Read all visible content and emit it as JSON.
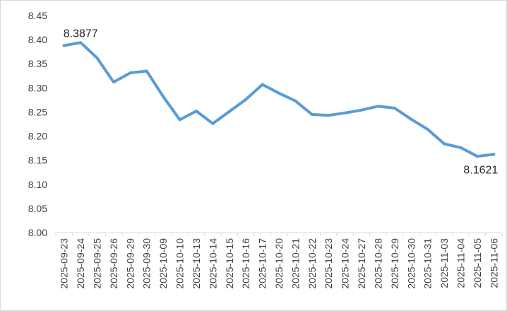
{
  "chart_data": {
    "type": "line",
    "title": "",
    "xlabel": "",
    "ylabel": "",
    "ylim": [
      8.0,
      8.45
    ],
    "y_ticks": [
      "8.00",
      "8.05",
      "8.10",
      "8.15",
      "8.20",
      "8.25",
      "8.30",
      "8.35",
      "8.40",
      "8.45"
    ],
    "grid": false,
    "legend": "none",
    "line_color": "#5B9BD5",
    "categories": [
      "2025-09-23",
      "2025-09-24",
      "2025-09-25",
      "2025-09-26",
      "2025-09-29",
      "2025-09-30",
      "2025-10-09",
      "2025-10-10",
      "2025-10-13",
      "2025-10-14",
      "2025-10-15",
      "2025-10-16",
      "2025-10-17",
      "2025-10-20",
      "2025-10-21",
      "2025-10-22",
      "2025-10-23",
      "2025-10-24",
      "2025-10-27",
      "2025-10-28",
      "2025-10-29",
      "2025-10-30",
      "2025-10-31",
      "2025-11-03",
      "2025-11-04",
      "2025-11-05",
      "2025-11-06"
    ],
    "series": [
      {
        "values": [
          8.3877,
          8.394,
          8.362,
          8.312,
          8.331,
          8.335,
          8.282,
          8.234,
          8.252,
          8.226,
          8.251,
          8.276,
          8.307,
          8.289,
          8.273,
          8.245,
          8.243,
          8.248,
          8.254,
          8.262,
          8.258,
          8.235,
          8.214,
          8.184,
          8.176,
          8.158,
          8.1621
        ]
      }
    ],
    "annotations": [
      {
        "text": "8.3877",
        "index": 0
      },
      {
        "text": "8.1621",
        "index": 26
      }
    ]
  }
}
